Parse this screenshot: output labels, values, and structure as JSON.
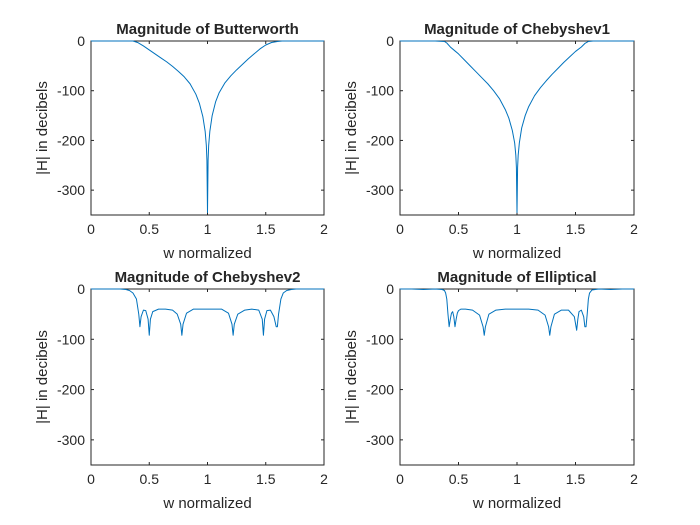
{
  "chart_data": [
    {
      "type": "line",
      "title": "Magnitude of Butterworth",
      "xlabel": "w normalized",
      "ylabel": "|H| in decibels",
      "xlim": [
        0,
        2
      ],
      "ylim": [
        -350,
        0
      ],
      "xticks": [
        "0",
        "0.5",
        "1",
        "1.5",
        "2"
      ],
      "yticks": [
        "0",
        "-100",
        "-200",
        "-300"
      ],
      "grid": false,
      "series": [
        {
          "color": "#0072BD",
          "x": [
            0,
            0.1,
            0.2,
            0.3,
            0.36,
            0.4,
            0.45,
            0.5,
            0.55,
            0.6,
            0.65,
            0.7,
            0.75,
            0.8,
            0.85,
            0.9,
            0.93,
            0.96,
            0.98,
            0.99,
            0.995,
            1.0,
            1.005,
            1.01,
            1.02,
            1.04,
            1.07,
            1.1,
            1.15,
            1.2,
            1.25,
            1.3,
            1.35,
            1.4,
            1.45,
            1.5,
            1.55,
            1.6,
            1.64,
            1.7,
            1.8,
            1.9,
            2.0
          ],
          "y": [
            0,
            0,
            0,
            0,
            0,
            -3,
            -10,
            -18,
            -26,
            -34,
            -42,
            -51,
            -61,
            -72,
            -86,
            -107,
            -125,
            -152,
            -182,
            -210,
            -240,
            -345,
            -240,
            -210,
            -182,
            -150,
            -122,
            -104,
            -84,
            -70,
            -58,
            -47,
            -36,
            -26,
            -16,
            -8,
            -3,
            -1,
            0,
            0,
            0,
            0,
            0
          ]
        }
      ]
    },
    {
      "type": "line",
      "title": "Magnitude of Chebyshev1",
      "xlabel": "w normalized",
      "ylabel": "|H| in decibels",
      "xlim": [
        0,
        2
      ],
      "ylim": [
        -350,
        0
      ],
      "xticks": [
        "0",
        "0.5",
        "1",
        "1.5",
        "2"
      ],
      "yticks": [
        "0",
        "-100",
        "-200",
        "-300"
      ],
      "grid": false,
      "series": [
        {
          "color": "#0072BD",
          "x": [
            0,
            0.1,
            0.2,
            0.3,
            0.38,
            0.4,
            0.43,
            0.47,
            0.5,
            0.55,
            0.6,
            0.65,
            0.7,
            0.75,
            0.8,
            0.85,
            0.9,
            0.93,
            0.96,
            0.98,
            0.99,
            0.995,
            1.0,
            1.005,
            1.01,
            1.02,
            1.04,
            1.07,
            1.1,
            1.15,
            1.2,
            1.25,
            1.3,
            1.35,
            1.4,
            1.45,
            1.5,
            1.55,
            1.58,
            1.61,
            1.65,
            1.7,
            1.8,
            1.9,
            2.0
          ],
          "y": [
            0,
            0,
            0,
            0,
            -1,
            -4,
            -12,
            -20,
            -26,
            -38,
            -50,
            -62,
            -74,
            -86,
            -100,
            -116,
            -138,
            -155,
            -180,
            -205,
            -230,
            -255,
            -345,
            -255,
            -230,
            -205,
            -175,
            -150,
            -132,
            -110,
            -94,
            -80,
            -67,
            -55,
            -43,
            -32,
            -21,
            -12,
            -5,
            -1,
            0,
            0,
            0,
            0,
            0
          ]
        }
      ]
    },
    {
      "type": "line",
      "title": "Magnitude of Chebyshev2",
      "xlabel": "w normalized",
      "ylabel": "|H| in decibels",
      "xlim": [
        0,
        2
      ],
      "ylim": [
        -350,
        0
      ],
      "xticks": [
        "0",
        "0.5",
        "1",
        "1.5",
        "2"
      ],
      "yticks": [
        "0",
        "-100",
        "-200",
        "-300"
      ],
      "grid": false,
      "series": [
        {
          "color": "#0072BD",
          "x": [
            0,
            0.1,
            0.2,
            0.25,
            0.3,
            0.33,
            0.36,
            0.39,
            0.41,
            0.42,
            0.43,
            0.45,
            0.47,
            0.49,
            0.5,
            0.51,
            0.53,
            0.58,
            0.64,
            0.7,
            0.74,
            0.77,
            0.78,
            0.79,
            0.82,
            0.88,
            0.95,
            1.0,
            1.05,
            1.12,
            1.18,
            1.21,
            1.22,
            1.23,
            1.26,
            1.32,
            1.38,
            1.44,
            1.47,
            1.48,
            1.49,
            1.51,
            1.54,
            1.57,
            1.59,
            1.6,
            1.61,
            1.63,
            1.65,
            1.68,
            1.72,
            1.76,
            1.8,
            1.9,
            2.0
          ],
          "y": [
            0,
            0,
            0,
            0,
            -1,
            -3,
            -8,
            -20,
            -50,
            -75,
            -55,
            -42,
            -43,
            -60,
            -92,
            -60,
            -45,
            -40,
            -40,
            -42,
            -50,
            -70,
            -92,
            -70,
            -48,
            -40,
            -40,
            -40,
            -40,
            -40,
            -48,
            -70,
            -92,
            -70,
            -50,
            -42,
            -40,
            -42,
            -60,
            -92,
            -60,
            -43,
            -42,
            -55,
            -75,
            -75,
            -50,
            -20,
            -8,
            -3,
            -1,
            0,
            0,
            0,
            0
          ]
        }
      ]
    },
    {
      "type": "line",
      "title": "Magnitude of Elliptical",
      "xlabel": "w normalized",
      "ylabel": "|H| in decibels",
      "xlim": [
        0,
        2
      ],
      "ylim": [
        -350,
        0
      ],
      "xticks": [
        "0",
        "0.5",
        "1",
        "1.5",
        "2"
      ],
      "yticks": [
        "0",
        "-100",
        "-200",
        "-300"
      ],
      "grid": false,
      "series": [
        {
          "color": "#0072BD",
          "x": [
            0,
            0.1,
            0.2,
            0.3,
            0.36,
            0.38,
            0.39,
            0.4,
            0.41,
            0.42,
            0.43,
            0.44,
            0.45,
            0.46,
            0.47,
            0.48,
            0.49,
            0.5,
            0.52,
            0.56,
            0.62,
            0.68,
            0.71,
            0.72,
            0.73,
            0.76,
            0.82,
            0.9,
            1.0,
            1.1,
            1.18,
            1.24,
            1.27,
            1.28,
            1.29,
            1.32,
            1.38,
            1.44,
            1.49,
            1.51,
            1.52,
            1.53,
            1.55,
            1.57,
            1.58,
            1.59,
            1.6,
            1.61,
            1.62,
            1.64,
            1.7,
            1.8,
            1.9,
            2.0
          ],
          "y": [
            0,
            0,
            -1,
            0,
            -1,
            -3,
            -8,
            -20,
            -50,
            -75,
            -60,
            -48,
            -45,
            -55,
            -75,
            -60,
            -48,
            -43,
            -40,
            -40,
            -42,
            -52,
            -75,
            -92,
            -75,
            -50,
            -42,
            -40,
            -40,
            -40,
            -42,
            -52,
            -75,
            -92,
            -75,
            -50,
            -42,
            -42,
            -55,
            -82,
            -60,
            -45,
            -42,
            -55,
            -75,
            -75,
            -50,
            -20,
            -8,
            -2,
            0,
            -1,
            0,
            0
          ]
        }
      ]
    }
  ]
}
